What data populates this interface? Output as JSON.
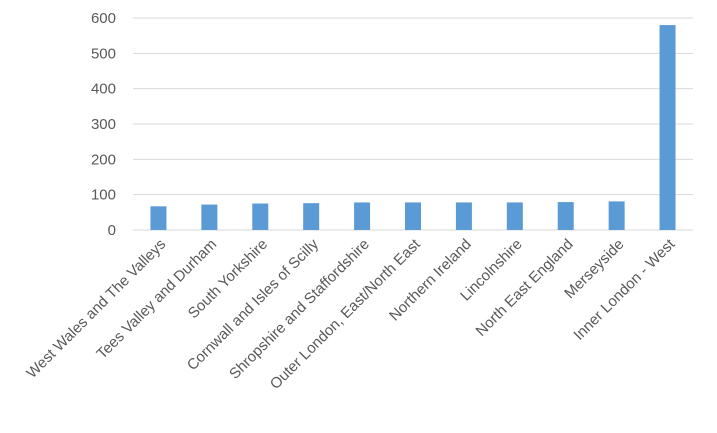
{
  "chart_data": {
    "type": "bar",
    "title": "",
    "xlabel": "",
    "ylabel": "",
    "ylim": [
      0,
      600
    ],
    "yticks": [
      0,
      100,
      200,
      300,
      400,
      500,
      600
    ],
    "grid": true,
    "legend": "none",
    "bar_color": "#5b9bd5",
    "categories": [
      "West Wales and The Valleys",
      "Tees Valley and Durham",
      "South Yorkshire",
      "Cornwall and Isles of Scilly",
      "Shropshire and Staffordshire",
      "Outer London, East/North East",
      "Northern Ireland",
      "Lincolnshire",
      "North East England",
      "Merseyside",
      "Inner London - West"
    ],
    "values": [
      67,
      72,
      75,
      76,
      78,
      78,
      78,
      78,
      79,
      81,
      580
    ]
  }
}
